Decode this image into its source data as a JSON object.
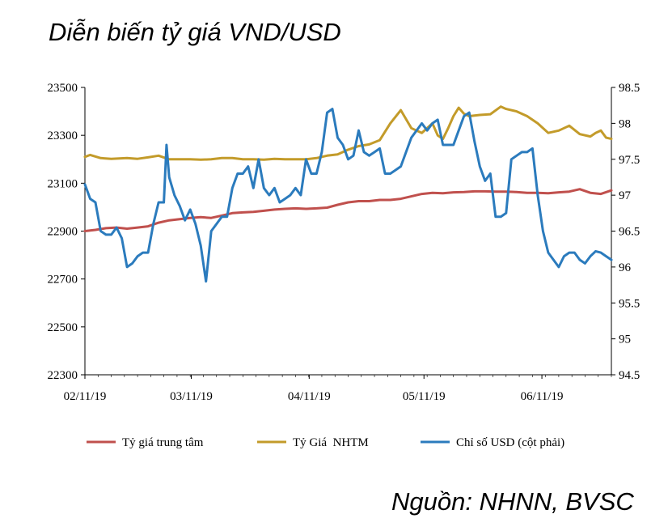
{
  "title": "Diễn biến tỷ giá VND/USD",
  "source": "Nguồn: NHNN, BVSC",
  "chart_data": {
    "type": "line",
    "title": "Diễn biến tỷ giá VND/USD",
    "x_tick_labels": [
      "02/11/19",
      "03/11/19",
      "04/11/19",
      "05/11/19",
      "06/11/19"
    ],
    "ylim_left": [
      22300,
      23500
    ],
    "yticks_left": [
      "23500",
      "23300",
      "23100",
      "22900",
      "22700",
      "22500",
      "22300"
    ],
    "ylim_right": [
      94.5,
      98.5
    ],
    "yticks_right": [
      "98.5",
      "98",
      "97.5",
      "97",
      "96.5",
      "96",
      "95.5",
      "95",
      "94.5"
    ],
    "legend_position": "bottom",
    "series": [
      {
        "name": "Tỷ giá trung tâm",
        "axis": "left",
        "color": "#c0504d",
        "x": [
          0,
          2,
          4,
          6,
          8,
          10,
          12,
          14,
          16,
          18,
          20,
          22,
          24,
          26,
          28,
          30,
          32,
          34,
          36,
          38,
          40,
          42,
          44,
          46,
          48,
          50,
          52,
          54,
          56,
          58,
          60,
          62,
          64,
          66,
          68,
          70,
          72,
          74,
          76,
          78,
          80,
          82,
          84,
          86,
          88,
          90,
          92,
          94,
          96,
          98,
          100
        ],
        "values": [
          22900,
          22905,
          22912,
          22915,
          22910,
          22915,
          22920,
          22935,
          22945,
          22950,
          22955,
          22958,
          22955,
          22965,
          22975,
          22978,
          22980,
          22985,
          22990,
          22993,
          22995,
          22993,
          22995,
          22998,
          23010,
          23020,
          23025,
          23025,
          23030,
          23030,
          23035,
          23045,
          23055,
          23060,
          23058,
          23062,
          23063,
          23066,
          23066,
          23065,
          23065,
          23063,
          23060,
          23060,
          23058,
          23062,
          23065,
          23075,
          23060,
          23055,
          23070
        ]
      },
      {
        "name": "Tỷ Giá  NHTM",
        "axis": "left",
        "color": "#c39b2a",
        "x": [
          0,
          1,
          3,
          5,
          8,
          10,
          12,
          14,
          16,
          18,
          20,
          22,
          24,
          26,
          28,
          30,
          32,
          34,
          36,
          38,
          40,
          42,
          44,
          46,
          48,
          50,
          52,
          54,
          56,
          58,
          60,
          62,
          63,
          64,
          66,
          67,
          68,
          69,
          70,
          71,
          72,
          73,
          75,
          77,
          79,
          80,
          82,
          84,
          86,
          88,
          90,
          92,
          94,
          96,
          97,
          98,
          99,
          100
        ],
        "values": [
          23210,
          23218,
          23205,
          23202,
          23205,
          23202,
          23208,
          23215,
          23200,
          23200,
          23200,
          23198,
          23200,
          23205,
          23205,
          23200,
          23200,
          23198,
          23202,
          23200,
          23200,
          23200,
          23205,
          23215,
          23220,
          23240,
          23255,
          23262,
          23280,
          23350,
          23405,
          23330,
          23320,
          23310,
          23350,
          23300,
          23285,
          23330,
          23380,
          23415,
          23390,
          23380,
          23385,
          23388,
          23420,
          23410,
          23400,
          23380,
          23350,
          23310,
          23320,
          23340,
          23305,
          23295,
          23310,
          23320,
          23290,
          23285
        ]
      },
      {
        "name": "Chỉ số USD (cột phải)",
        "axis": "right",
        "color": "#2b7bbd",
        "x": [
          0,
          1,
          2,
          3,
          4,
          5,
          6,
          7,
          8,
          9,
          10,
          11,
          12,
          13,
          14,
          15,
          15.5,
          16,
          17,
          18,
          19,
          20,
          21,
          22,
          23,
          24,
          25,
          26,
          27,
          28,
          29,
          30,
          31,
          32,
          33,
          34,
          35,
          36,
          37,
          38,
          39,
          40,
          41,
          42,
          43,
          44,
          45,
          46,
          47,
          48,
          49,
          50,
          51,
          52,
          53,
          54,
          55,
          56,
          57,
          58,
          59,
          60,
          61,
          62,
          63,
          64,
          65,
          66,
          67,
          68,
          69,
          70,
          71,
          72,
          73,
          74,
          75,
          76,
          77,
          78,
          79,
          80,
          81,
          82,
          83,
          84,
          85,
          86,
          87,
          88,
          89,
          90,
          91,
          92,
          93,
          94,
          95,
          96,
          97,
          98,
          99,
          100
        ],
        "values": [
          97.15,
          96.95,
          96.9,
          96.5,
          96.45,
          96.45,
          96.55,
          96.4,
          96.0,
          96.05,
          96.15,
          96.2,
          96.2,
          96.6,
          96.9,
          96.9,
          97.7,
          97.25,
          97.0,
          96.85,
          96.65,
          96.8,
          96.6,
          96.3,
          95.8,
          96.5,
          96.6,
          96.7,
          96.7,
          97.1,
          97.3,
          97.3,
          97.4,
          97.1,
          97.5,
          97.1,
          97.0,
          97.1,
          96.9,
          96.95,
          97.0,
          97.1,
          97.0,
          97.5,
          97.3,
          97.3,
          97.6,
          98.15,
          98.2,
          97.8,
          97.7,
          97.5,
          97.55,
          97.9,
          97.6,
          97.55,
          97.6,
          97.65,
          97.3,
          97.3,
          97.35,
          97.4,
          97.6,
          97.8,
          97.9,
          98.0,
          97.9,
          98.0,
          98.05,
          97.7,
          97.7,
          97.7,
          97.9,
          98.1,
          98.15,
          97.75,
          97.4,
          97.2,
          97.3,
          96.7,
          96.7,
          96.75,
          97.5,
          97.55,
          97.6,
          97.6,
          97.65,
          97.0,
          96.5,
          96.2,
          96.1,
          96.0,
          96.15,
          96.2,
          96.2,
          96.1,
          96.05,
          96.15,
          96.22,
          96.2,
          96.15,
          96.1
        ]
      }
    ]
  }
}
